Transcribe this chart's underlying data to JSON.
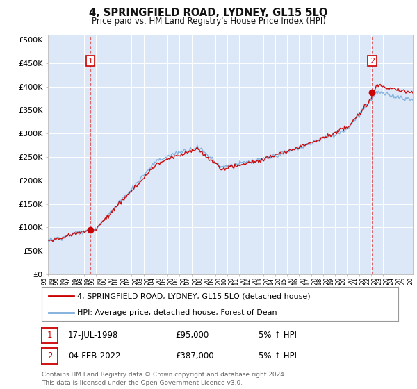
{
  "title": "4, SPRINGFIELD ROAD, LYDNEY, GL15 5LQ",
  "subtitle": "Price paid vs. HM Land Registry's House Price Index (HPI)",
  "ylabel_ticks": [
    "£0",
    "£50K",
    "£100K",
    "£150K",
    "£200K",
    "£250K",
    "£300K",
    "£350K",
    "£400K",
    "£450K",
    "£500K"
  ],
  "ytick_values": [
    0,
    50000,
    100000,
    150000,
    200000,
    250000,
    300000,
    350000,
    400000,
    450000,
    500000
  ],
  "ylim": [
    0,
    510000
  ],
  "xlim_start": 1995.0,
  "xlim_end": 2025.5,
  "plot_bg_color": "#dce8f8",
  "legend_label_red": "4, SPRINGFIELD ROAD, LYDNEY, GL15 5LQ (detached house)",
  "legend_label_blue": "HPI: Average price, detached house, Forest of Dean",
  "sale1_date": "17-JUL-1998",
  "sale1_price": 95000,
  "sale1_label": "1",
  "sale1_x": 1998.54,
  "sale2_date": "04-FEB-2022",
  "sale2_price": 387000,
  "sale2_label": "2",
  "sale2_x": 2022.09,
  "footer": "Contains HM Land Registry data © Crown copyright and database right 2024.\nThis data is licensed under the Open Government Licence v3.0.",
  "red_color": "#cc0000",
  "blue_color": "#7aadda",
  "dashed_color": "#dd4444",
  "annotation_box_color": "#cc0000"
}
